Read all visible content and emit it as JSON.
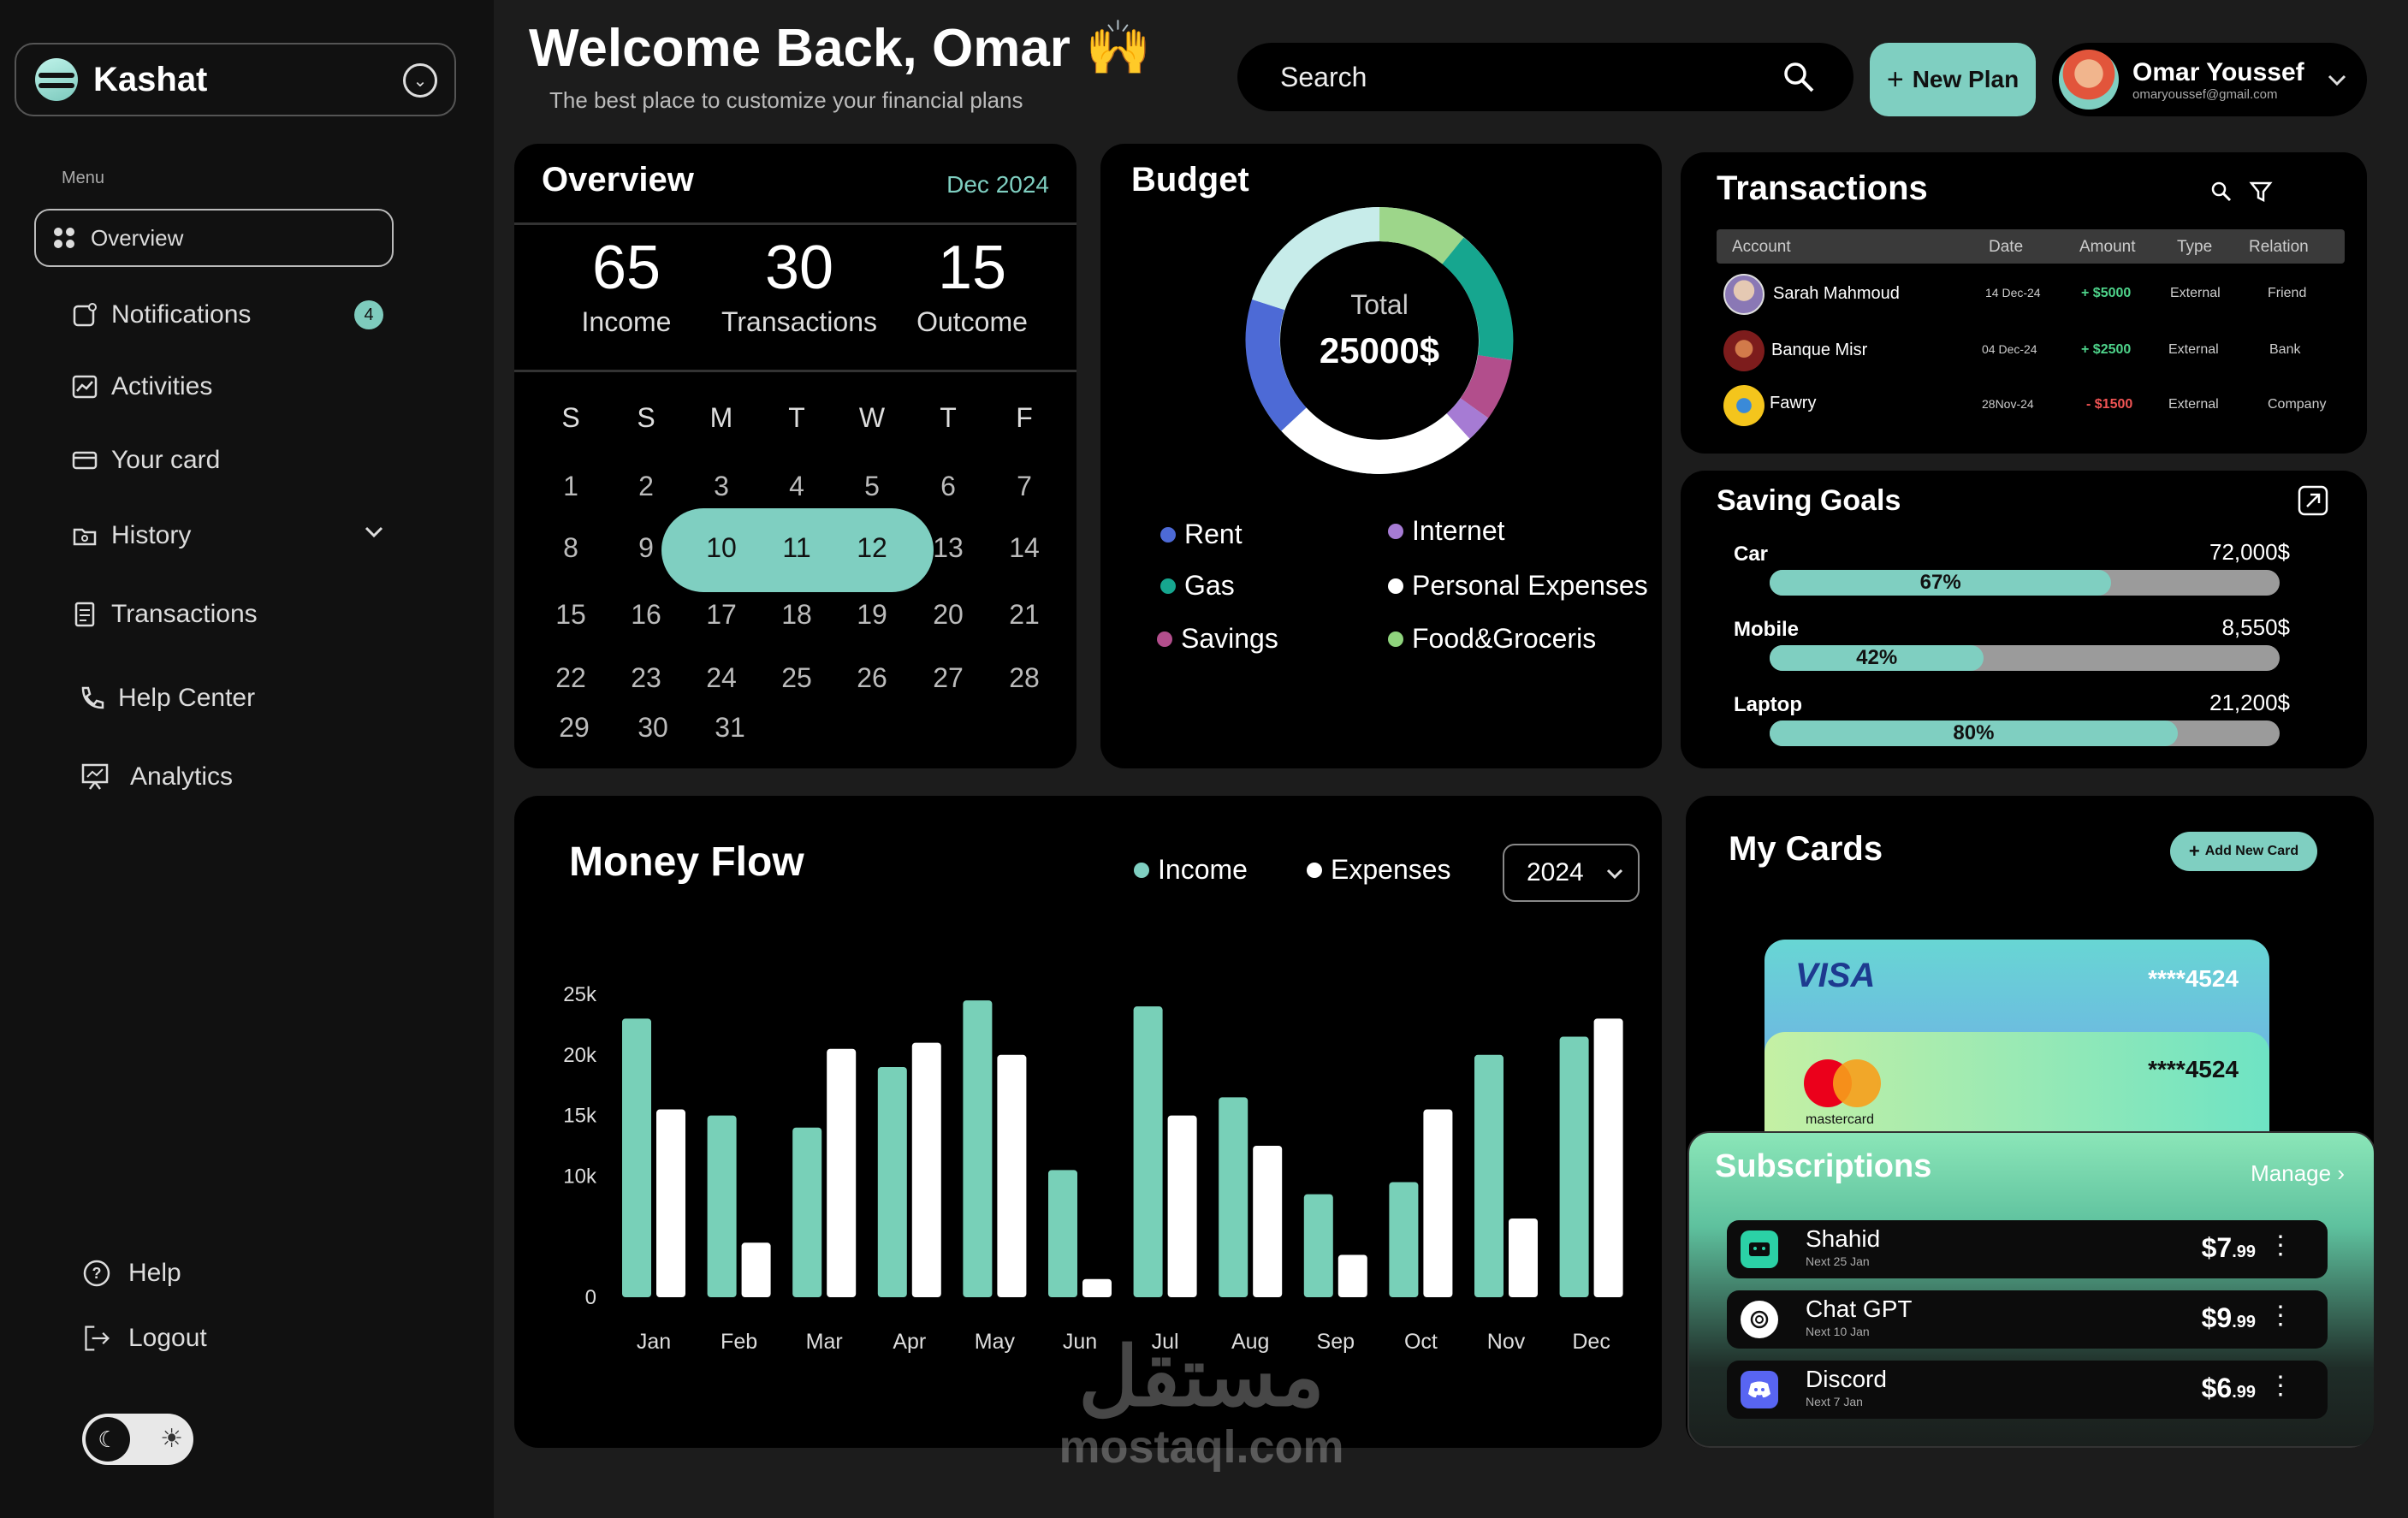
{
  "app": {
    "name": "Kashat"
  },
  "sidebar": {
    "menu_label": "Menu",
    "items": [
      {
        "label": "Overview",
        "icon": "grid-icon"
      },
      {
        "label": "Notifications",
        "icon": "bell-icon",
        "badge": "4"
      },
      {
        "label": "Activities",
        "icon": "chart-icon"
      },
      {
        "label": "Your card",
        "icon": "card-icon"
      },
      {
        "label": "History",
        "icon": "folder-icon"
      },
      {
        "label": "Transactions",
        "icon": "receipt-icon"
      },
      {
        "label": "Help Center",
        "icon": "phone-icon"
      },
      {
        "label": "Analytics",
        "icon": "presentation-icon"
      }
    ],
    "help": "Help",
    "logout": "Logout"
  },
  "header": {
    "welcome": "Welcome Back, Omar 🙌",
    "subtitle": "The best place to customize your financial plans",
    "search_placeholder": "Search",
    "new_plan": "New Plan",
    "user_name": "Omar Youssef",
    "user_email": "omaryoussef@gmail.com"
  },
  "overview": {
    "title": "Overview",
    "date": "Dec 2024",
    "stats": [
      {
        "value": "65",
        "label": "Income"
      },
      {
        "value": "30",
        "label": "Transactions"
      },
      {
        "value": "15",
        "label": "Outcome"
      }
    ],
    "weekdays": [
      "S",
      "S",
      "M",
      "T",
      "W",
      "T",
      "F"
    ],
    "days": [
      "1",
      "2",
      "3",
      "4",
      "5",
      "6",
      "7",
      "8",
      "9",
      "10",
      "11",
      "12",
      "13",
      "14",
      "15",
      "16",
      "17",
      "18",
      "19",
      "20",
      "21",
      "22",
      "23",
      "24",
      "25",
      "26",
      "27",
      "28",
      "29",
      "30",
      "31"
    ]
  },
  "budget": {
    "title": "Budget",
    "total_label": "Total",
    "total_value": "25000$",
    "legend": [
      {
        "label": "Rent",
        "color": "#4d6ad6"
      },
      {
        "label": "Internet",
        "color": "#a67bd4"
      },
      {
        "label": "Gas",
        "color": "#16a68f"
      },
      {
        "label": "Personal Expenses",
        "color": "#ffffff"
      },
      {
        "label": "Savings",
        "color": "#b24e8c"
      },
      {
        "label": "Food&Groceris",
        "color": "#8fd47d"
      }
    ]
  },
  "transactions": {
    "title": "Transactions",
    "columns": [
      "Account",
      "Date",
      "Amount",
      "Type",
      "Relation"
    ],
    "rows": [
      {
        "account": "Sarah Mahmoud",
        "date": "14 Dec-24",
        "amount": "+ $5000",
        "type": "External",
        "relation": "Friend"
      },
      {
        "account": "Banque Misr",
        "date": "04 Dec-24",
        "amount": "+ $2500",
        "type": "External",
        "relation": "Bank"
      },
      {
        "account": "Fawry",
        "date": "28Nov-24",
        "amount": "- $1500",
        "type": "External",
        "relation": "Company"
      }
    ]
  },
  "saving_goals": {
    "title": "Saving Goals",
    "goals": [
      {
        "name": "Car",
        "amount": "72,000$",
        "percent_label": "67%",
        "percent": 67
      },
      {
        "name": "Mobile",
        "amount": "8,550$",
        "percent_label": "42%",
        "percent": 42
      },
      {
        "name": "Laptop",
        "amount": "21,200$",
        "percent_label": "80%",
        "percent": 80
      }
    ]
  },
  "money_flow": {
    "title": "Money Flow",
    "year": "2024"
  },
  "chart_data": {
    "type": "bar",
    "categories": [
      "Jan",
      "Feb",
      "Mar",
      "Apr",
      "May",
      "Jun",
      "Jul",
      "Aug",
      "Sep",
      "Oct",
      "Nov",
      "Dec"
    ],
    "series": [
      {
        "name": "Income",
        "color": "#78d0b8",
        "values": [
          23000,
          15000,
          14000,
          19000,
          24500,
          10500,
          24000,
          16500,
          8500,
          9500,
          20000,
          21500
        ]
      },
      {
        "name": "Expenses",
        "color": "#ffffff",
        "values": [
          15500,
          4500,
          20500,
          21000,
          20000,
          1500,
          15000,
          12500,
          3500,
          15500,
          6500,
          23000
        ]
      }
    ],
    "yticks": [
      "0",
      "10k",
      "15k",
      "20k",
      "25k"
    ],
    "legend_position": "top-right"
  },
  "my_cards": {
    "title": "My Cards",
    "add_button": "Add New Card",
    "cards": [
      {
        "brand": "VISA",
        "number": "****4524"
      },
      {
        "brand": "mastercard",
        "number": "****4524"
      }
    ]
  },
  "subscriptions": {
    "title": "Subscriptions",
    "manage": "Manage",
    "items": [
      {
        "name": "Shahid",
        "next": "Next 25 Jan",
        "price": "$7",
        "cents": ".99",
        "color": "#2bd1a6"
      },
      {
        "name": "Chat GPT",
        "next": "Next 10 Jan",
        "price": "$9",
        "cents": ".99",
        "color": "#ffffff"
      },
      {
        "name": "Discord",
        "next": "Next 7 Jan",
        "price": "$6",
        "cents": ".99",
        "color": "#5865f2"
      }
    ]
  },
  "watermark": {
    "arabic": "مستقل",
    "latin": "mostaql.com"
  }
}
